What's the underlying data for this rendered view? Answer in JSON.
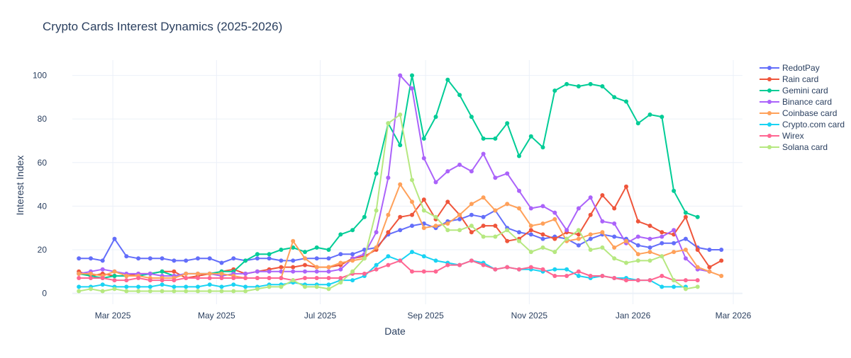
{
  "chart_data": {
    "type": "line",
    "title": "Crypto Cards Interest Dynamics (2025-2026)",
    "xlabel": "Date",
    "ylabel": "Interest Index",
    "ylim": [
      -5,
      107
    ],
    "x_ticks": [
      {
        "label": "Mar 2025",
        "date": "2025-03-01"
      },
      {
        "label": "May 2025",
        "date": "2025-05-01"
      },
      {
        "label": "Jul 2025",
        "date": "2025-07-01"
      },
      {
        "label": "Sep 2025",
        "date": "2025-09-01"
      },
      {
        "label": "Nov 2025",
        "date": "2025-11-01"
      },
      {
        "label": "Jan 2026",
        "date": "2026-01-01"
      },
      {
        "label": "Mar 2026",
        "date": "2026-03-01"
      }
    ],
    "y_ticks": [
      0,
      20,
      40,
      60,
      80,
      100
    ],
    "x_start": "2025-02-09",
    "x_step_days": 7,
    "legend_position": "top-right",
    "series": [
      {
        "name": "RedotPay",
        "color": "#636efa",
        "values": [
          16,
          16,
          15,
          25,
          17,
          16,
          16,
          16,
          15,
          15,
          16,
          16,
          14,
          16,
          15,
          16,
          16,
          15,
          15,
          16,
          16,
          16,
          18,
          18,
          20,
          21,
          27,
          29,
          31,
          32,
          30,
          33,
          34,
          36,
          35,
          38,
          30,
          28,
          27,
          25,
          26,
          25,
          22,
          25,
          27,
          26,
          25,
          22,
          21,
          23,
          23,
          25,
          21,
          20,
          20
        ]
      },
      {
        "name": "Rain card",
        "color": "#ef553b",
        "values": [
          10,
          8,
          9,
          8,
          8,
          9,
          9,
          10,
          10,
          7,
          8,
          9,
          10,
          11,
          9,
          10,
          11,
          12,
          12,
          13,
          12,
          12,
          13,
          16,
          17,
          20,
          28,
          35,
          36,
          43,
          34,
          42,
          36,
          28,
          31,
          31,
          24,
          25,
          29,
          27,
          25,
          28,
          27,
          36,
          45,
          39,
          49,
          33,
          31,
          28,
          27,
          35,
          20,
          12,
          15
        ]
      },
      {
        "name": "Gemini card",
        "color": "#00cc96",
        "values": [
          9,
          8,
          7,
          8,
          8,
          8,
          9,
          10,
          8,
          9,
          9,
          9,
          10,
          10,
          15,
          18,
          18,
          20,
          21,
          19,
          21,
          20,
          27,
          29,
          35,
          55,
          78,
          68,
          100,
          71,
          81,
          98,
          91,
          81,
          71,
          71,
          78,
          63,
          72,
          67,
          93,
          96,
          95,
          96,
          95,
          90,
          88,
          78,
          82,
          81,
          47,
          37,
          35
        ]
      },
      {
        "name": "Binance card",
        "color": "#ab63fa",
        "values": [
          9,
          10,
          11,
          10,
          9,
          9,
          9,
          8,
          8,
          9,
          9,
          9,
          8,
          9,
          9,
          10,
          10,
          10,
          10,
          10,
          10,
          10,
          11,
          16,
          18,
          28,
          53,
          100,
          94,
          62,
          51,
          56,
          59,
          56,
          64,
          53,
          55,
          47,
          39,
          40,
          37,
          29,
          39,
          44,
          33,
          32,
          23,
          26,
          25,
          26,
          29,
          16,
          11,
          10
        ]
      },
      {
        "name": "Coinbase card",
        "color": "#ffa15a",
        "values": [
          9,
          9,
          8,
          10,
          8,
          8,
          7,
          7,
          7,
          9,
          9,
          9,
          9,
          8,
          7,
          7,
          7,
          7,
          24,
          16,
          12,
          12,
          14,
          15,
          16,
          21,
          36,
          50,
          42,
          30,
          31,
          32,
          36,
          41,
          44,
          38,
          41,
          39,
          31,
          32,
          34,
          24,
          25,
          27,
          28,
          21,
          24,
          18,
          19,
          17,
          19,
          20,
          12,
          10,
          8
        ]
      },
      {
        "name": "Crypto.com card",
        "color": "#19d3f3",
        "values": [
          3,
          3,
          4,
          3,
          3,
          3,
          3,
          4,
          3,
          3,
          3,
          4,
          3,
          4,
          3,
          3,
          4,
          4,
          5,
          4,
          4,
          4,
          6,
          6,
          8,
          13,
          17,
          15,
          19,
          17,
          15,
          14,
          13,
          15,
          14,
          11,
          12,
          11,
          11,
          10,
          11,
          11,
          8,
          7,
          8,
          7,
          7,
          6,
          6,
          3,
          3,
          3
        ]
      },
      {
        "name": "Wirex",
        "color": "#ff6692",
        "values": [
          7,
          7,
          7,
          6,
          6,
          7,
          6,
          6,
          6,
          7,
          7,
          7,
          7,
          7,
          7,
          7,
          7,
          7,
          6,
          7,
          7,
          7,
          7,
          9,
          9,
          11,
          13,
          15,
          10,
          10,
          10,
          13,
          13,
          15,
          13,
          11,
          12,
          11,
          12,
          11,
          8,
          8,
          10,
          8,
          8,
          7,
          6,
          6,
          6,
          8,
          6,
          6,
          6
        ]
      },
      {
        "name": "Solana card",
        "color": "#b6e880",
        "values": [
          1,
          2,
          1,
          2,
          1,
          1,
          1,
          1,
          1,
          1,
          1,
          1,
          1,
          1,
          1,
          2,
          3,
          3,
          6,
          3,
          3,
          2,
          5,
          10,
          16,
          38,
          78,
          82,
          52,
          38,
          35,
          29,
          29,
          31,
          26,
          26,
          29,
          24,
          19,
          21,
          19,
          25,
          29,
          20,
          21,
          16,
          14,
          15,
          15,
          17,
          6,
          2,
          3
        ]
      }
    ]
  }
}
